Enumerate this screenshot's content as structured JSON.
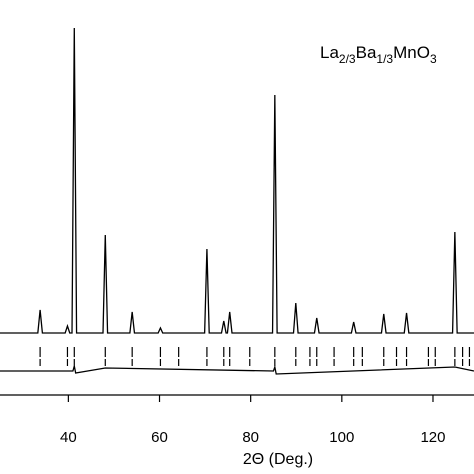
{
  "chart_data": {
    "type": "line",
    "xlabel": "2Θ (Deg.)",
    "annotation": [
      "La",
      "2/3",
      "Ba",
      "1/3",
      "MnO",
      "3"
    ],
    "xlim": [
      25,
      129
    ],
    "ylim": [
      -62,
      333
    ],
    "xticks": [
      40,
      60,
      80,
      100,
      120
    ],
    "series": [
      {
        "color": "#000000",
        "x": [
          25,
          33.3,
          33.8,
          34.3,
          39.3,
          39.8,
          40.3,
          40.8,
          41.3,
          41.8,
          47.6,
          48.1,
          48.6,
          53.5,
          54.0,
          54.5,
          59.7,
          60.2,
          60.7,
          69.9,
          70.4,
          70.9,
          73.6,
          74.1,
          74.6,
          74.9,
          75.4,
          75.9,
          84.8,
          85.3,
          85.8,
          89.4,
          89.9,
          90.4,
          94.0,
          94.5,
          95.0,
          102.1,
          102.6,
          103.1,
          108.7,
          109.2,
          109.7,
          113.7,
          114.2,
          114.7,
          124.3,
          124.8,
          125.3,
          129
        ],
        "values": [
          0,
          0,
          23,
          0,
          0,
          7,
          0,
          0,
          305,
          0,
          0,
          98,
          0,
          0,
          21,
          0,
          0,
          5,
          0,
          0,
          84,
          0,
          0,
          12,
          0,
          0,
          21,
          0,
          0,
          238,
          0,
          0,
          30,
          0,
          0,
          15,
          0,
          0,
          11,
          0,
          0,
          19,
          0,
          0,
          20,
          0,
          0,
          101,
          0,
          0
        ]
      },
      {
        "color": "#000000",
        "x": [
          25,
          41.0,
          41.3,
          41.6,
          48.1,
          85.0,
          85.3,
          85.6,
          124.8,
          129
        ],
        "values": [
          -38,
          -38,
          -33,
          -40,
          -35,
          -38,
          -34,
          -41,
          -34,
          -38
        ]
      }
    ],
    "reflections": [
      33.8,
      39.8,
      41.3,
      48.1,
      54.0,
      60.2,
      64.2,
      70.4,
      74.1,
      75.4,
      79.8,
      85.3,
      89.9,
      93.0,
      94.5,
      98.3,
      102.6,
      104.5,
      109.2,
      112.0,
      114.2,
      119.0,
      120.5,
      124.8,
      126.5,
      128
    ]
  }
}
